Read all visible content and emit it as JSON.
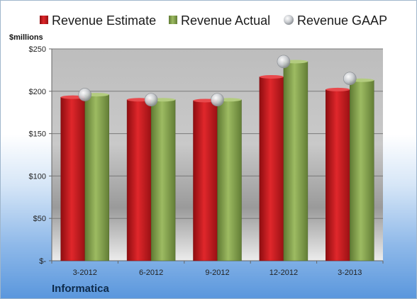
{
  "company": "Informatica",
  "unit_label": "$millions",
  "colors": {
    "estimate": "#c8171b",
    "actual": "#8aa651",
    "gaap": "#c9ccd0"
  },
  "chart_data": {
    "type": "bar",
    "categories": [
      "3-2012",
      "6-2012",
      "9-2012",
      "12-2012",
      "3-2013"
    ],
    "series": [
      {
        "name": "Revenue Estimate",
        "values": [
          193,
          190,
          189,
          217,
          202
        ]
      },
      {
        "name": "Revenue Actual",
        "values": [
          196,
          190,
          190,
          235,
          213
        ]
      },
      {
        "name": "Revenue GAAP",
        "values": [
          196,
          190,
          190,
          235,
          215
        ]
      }
    ],
    "ylim": [
      0,
      250
    ],
    "yticks": [
      0,
      50,
      100,
      150,
      200,
      250
    ],
    "ytick_labels": [
      "$-",
      "$50",
      "$100",
      "$150",
      "$200",
      "$250"
    ],
    "legend_position": "top",
    "grid": true
  }
}
